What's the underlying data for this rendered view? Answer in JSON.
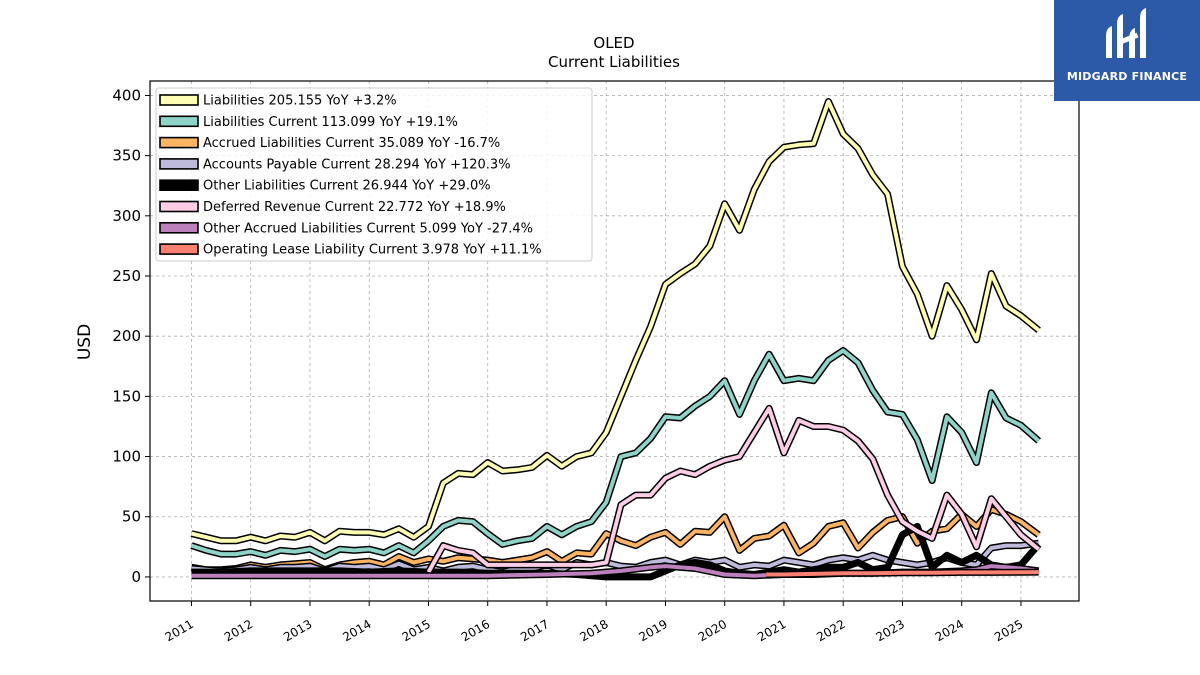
{
  "chart_data": {
    "type": "line",
    "title": "OLED",
    "subtitle": "Current  Liabilities",
    "ylabel": "USD",
    "xlabel": "",
    "ylim": [
      -20,
      412
    ],
    "xlim": [
      2010.3,
      2025.98
    ],
    "yticks": [
      0,
      50,
      100,
      150,
      200,
      250,
      300,
      350,
      400
    ],
    "xticks": [
      "2011",
      "2012",
      "2013",
      "2014",
      "2015",
      "2016",
      "2017",
      "2018",
      "2019",
      "2020",
      "2021",
      "2022",
      "2023",
      "2024",
      "2025"
    ],
    "grid": true,
    "legend_position": "top-left",
    "series": [
      {
        "name": "Liabilities",
        "label": "Liabilities  205.155 YoY +3.2%",
        "color": "#ffffb3",
        "x": [
          2011.0,
          2011.25,
          2011.5,
          2011.75,
          2012.0,
          2012.25,
          2012.5,
          2012.75,
          2013.0,
          2013.25,
          2013.5,
          2013.75,
          2014.0,
          2014.25,
          2014.5,
          2014.75,
          2015.0,
          2015.25,
          2015.5,
          2015.75,
          2016.0,
          2016.25,
          2016.5,
          2016.75,
          2017.0,
          2017.25,
          2017.5,
          2017.75,
          2018.0,
          2018.25,
          2018.5,
          2018.75,
          2019.0,
          2019.25,
          2019.5,
          2019.75,
          2020.0,
          2020.25,
          2020.5,
          2020.75,
          2021.0,
          2021.25,
          2021.5,
          2021.75,
          2022.0,
          2022.25,
          2022.5,
          2022.75,
          2023.0,
          2023.25,
          2023.5,
          2023.75,
          2024.0,
          2024.25,
          2024.5,
          2024.75,
          2025.0,
          2025.3
        ],
        "y": [
          36,
          33,
          30,
          30,
          33,
          30,
          34,
          33,
          37,
          30,
          38,
          37,
          37,
          35,
          40,
          33,
          42,
          78,
          86,
          85,
          95,
          88,
          89,
          91,
          101,
          92,
          100,
          103,
          120,
          150,
          180,
          208,
          243,
          252,
          260,
          275,
          310,
          288,
          322,
          345,
          357,
          359,
          360,
          395,
          368,
          356,
          334,
          318,
          258,
          235,
          200,
          242,
          222,
          197,
          252,
          225,
          217,
          205
        ]
      },
      {
        "name": "Liabilities Current",
        "label": "Liabilities Current  113.099 YoY +19.1%",
        "color": "#8dd3c7",
        "x": [
          2011.0,
          2011.25,
          2011.5,
          2011.75,
          2012.0,
          2012.25,
          2012.5,
          2012.75,
          2013.0,
          2013.25,
          2013.5,
          2013.75,
          2014.0,
          2014.25,
          2014.5,
          2014.75,
          2015.0,
          2015.25,
          2015.5,
          2015.75,
          2016.0,
          2016.25,
          2016.5,
          2016.75,
          2017.0,
          2017.25,
          2017.5,
          2017.75,
          2018.0,
          2018.25,
          2018.5,
          2018.75,
          2019.0,
          2019.25,
          2019.5,
          2019.75,
          2020.0,
          2020.25,
          2020.5,
          2020.75,
          2021.0,
          2021.25,
          2021.5,
          2021.75,
          2022.0,
          2022.25,
          2022.5,
          2022.75,
          2023.0,
          2023.25,
          2023.5,
          2023.75,
          2024.0,
          2024.25,
          2024.5,
          2024.75,
          2025.0,
          2025.3
        ],
        "y": [
          26,
          22,
          19,
          19,
          21,
          18,
          22,
          21,
          23,
          17,
          23,
          22,
          23,
          20,
          26,
          20,
          30,
          42,
          47,
          46,
          36,
          27,
          30,
          32,
          42,
          35,
          42,
          46,
          62,
          100,
          103,
          115,
          133,
          132,
          142,
          150,
          163,
          135,
          163,
          185,
          163,
          165,
          163,
          180,
          188,
          178,
          155,
          137,
          135,
          114,
          80,
          133,
          120,
          95,
          153,
          132,
          126,
          113
        ]
      },
      {
        "name": "Accrued Liabilities Current",
        "label": "Accrued Liabilities Current  35.089 YoY -16.7%",
        "color": "#fdb462",
        "x": [
          2011.0,
          2011.25,
          2011.5,
          2011.75,
          2012.0,
          2012.25,
          2012.5,
          2012.75,
          2013.0,
          2013.25,
          2013.5,
          2013.75,
          2014.0,
          2014.25,
          2014.5,
          2014.75,
          2015.0,
          2015.25,
          2015.5,
          2015.75,
          2016.0,
          2016.25,
          2016.5,
          2016.75,
          2017.0,
          2017.25,
          2017.5,
          2017.75,
          2018.0,
          2018.25,
          2018.5,
          2018.75,
          2019.0,
          2019.25,
          2019.5,
          2019.75,
          2020.0,
          2020.25,
          2020.5,
          2020.75,
          2021.0,
          2021.25,
          2021.5,
          2021.75,
          2022.0,
          2022.25,
          2022.5,
          2022.75,
          2023.0,
          2023.25,
          2023.5,
          2023.75,
          2024.0,
          2024.25,
          2024.5,
          2024.75,
          2025.0,
          2025.3
        ],
        "y": [
          8,
          6,
          6,
          7,
          10,
          8,
          10,
          11,
          12,
          6,
          10,
          12,
          13,
          10,
          17,
          12,
          15,
          13,
          16,
          15,
          14,
          12,
          14,
          16,
          21,
          13,
          20,
          19,
          36,
          30,
          26,
          33,
          37,
          27,
          38,
          37,
          50,
          22,
          32,
          34,
          43,
          20,
          28,
          42,
          45,
          24,
          37,
          47,
          50,
          28,
          38,
          40,
          52,
          42,
          56,
          52,
          46,
          35
        ]
      },
      {
        "name": "Accounts Payable Current",
        "label": "Accounts Payable Current  28.294 YoY +120.3%",
        "color": "#bebada",
        "x": [
          2011.0,
          2011.25,
          2011.5,
          2011.75,
          2012.0,
          2012.25,
          2012.5,
          2012.75,
          2013.0,
          2013.25,
          2013.5,
          2013.75,
          2014.0,
          2014.25,
          2014.5,
          2014.75,
          2015.0,
          2015.25,
          2015.5,
          2015.75,
          2016.0,
          2016.25,
          2016.5,
          2016.75,
          2017.0,
          2017.25,
          2017.5,
          2017.75,
          2018.0,
          2018.25,
          2018.5,
          2018.75,
          2019.0,
          2019.25,
          2019.5,
          2019.75,
          2020.0,
          2020.25,
          2020.5,
          2020.75,
          2021.0,
          2021.25,
          2021.5,
          2021.75,
          2022.0,
          2022.25,
          2022.5,
          2022.75,
          2023.0,
          2023.25,
          2023.5,
          2023.75,
          2024.0,
          2024.25,
          2024.5,
          2024.75,
          2025.0,
          2025.3
        ],
        "y": [
          7,
          6,
          5,
          6,
          8,
          6,
          8,
          8,
          9,
          5,
          9,
          8,
          9,
          6,
          11,
          6,
          8,
          5,
          8,
          9,
          6,
          4,
          7,
          7,
          10,
          6,
          12,
          10,
          12,
          9,
          8,
          12,
          14,
          10,
          14,
          12,
          14,
          8,
          10,
          9,
          14,
          12,
          10,
          14,
          16,
          14,
          18,
          14,
          12,
          10,
          12,
          16,
          12,
          10,
          24,
          26,
          26,
          28
        ]
      },
      {
        "name": "Other Liabilities Current",
        "label": "Other Liabilities Current  26.944 YoY +29.0%",
        "color": "#000000",
        "x": [
          2011.0,
          2011.5,
          2012.0,
          2012.5,
          2013.0,
          2013.5,
          2014.0,
          2014.5,
          2015.0,
          2015.5,
          2016.0,
          2016.5,
          2017.0,
          2017.5,
          2018.0,
          2018.25,
          2018.5,
          2018.75,
          2019.0,
          2019.25,
          2019.5,
          2019.75,
          2020.0,
          2020.25,
          2020.5,
          2020.75,
          2021.0,
          2021.25,
          2021.5,
          2021.75,
          2022.0,
          2022.25,
          2022.5,
          2022.75,
          2023.0,
          2023.25,
          2023.5,
          2023.75,
          2024.0,
          2024.25,
          2024.5,
          2024.75,
          2025.0,
          2025.3
        ],
        "y": [
          4,
          4,
          5,
          5,
          5,
          5,
          4,
          5,
          4,
          4,
          3,
          3,
          3,
          2,
          0,
          0,
          0,
          0,
          5,
          10,
          12,
          10,
          5,
          3,
          2,
          4,
          6,
          4,
          6,
          8,
          8,
          12,
          6,
          8,
          35,
          42,
          8,
          18,
          12,
          18,
          10,
          8,
          10,
          27
        ]
      },
      {
        "name": "Deferred Revenue Current",
        "label": "Deferred Revenue Current  22.772 YoY +18.9%",
        "color": "#fccde5",
        "x": [
          2015.0,
          2015.25,
          2015.5,
          2015.75,
          2016.0,
          2016.25,
          2016.5,
          2016.75,
          2017.0,
          2017.25,
          2017.5,
          2017.75,
          2018.0,
          2018.25,
          2018.5,
          2018.75,
          2019.0,
          2019.25,
          2019.5,
          2019.75,
          2020.0,
          2020.25,
          2020.5,
          2020.75,
          2021.0,
          2021.25,
          2021.5,
          2021.75,
          2022.0,
          2022.25,
          2022.5,
          2022.75,
          2023.0,
          2023.25,
          2023.5,
          2023.75,
          2024.0,
          2024.25,
          2024.5,
          2024.75,
          2025.0,
          2025.3
        ],
        "y": [
          4,
          26,
          22,
          20,
          10,
          10,
          10,
          10,
          10,
          10,
          10,
          10,
          12,
          60,
          68,
          68,
          82,
          88,
          85,
          92,
          97,
          100,
          120,
          140,
          103,
          130,
          125,
          125,
          122,
          113,
          98,
          68,
          46,
          38,
          32,
          68,
          52,
          25,
          65,
          50,
          35,
          23
        ]
      },
      {
        "name": "Other Accrued Liabilities Current",
        "label": "Other Accrued Liabilities Current  5.099 YoY -27.4%",
        "color": "#bc80bd",
        "x": [
          2011.0,
          2012.0,
          2013.0,
          2014.0,
          2015.0,
          2016.0,
          2017.0,
          2017.75,
          2018.25,
          2018.75,
          2019.0,
          2019.5,
          2020.0,
          2020.5,
          2021.0,
          2021.5,
          2022.0,
          2022.5,
          2023.0,
          2023.5,
          2024.0,
          2024.25,
          2024.5,
          2024.75,
          2025.0,
          2025.3
        ],
        "y": [
          1,
          1,
          1,
          1,
          1,
          1,
          2,
          3,
          5,
          8,
          9,
          7,
          2,
          1,
          2,
          2,
          3,
          3,
          4,
          4,
          5,
          6,
          9,
          8,
          7,
          5
        ]
      },
      {
        "name": "Operating Lease Liability Current",
        "label": "Operating Lease Liability Current  3.978 YoY +11.1%",
        "color": "#fb8072",
        "x": [
          2020.7,
          2021.0,
          2021.5,
          2022.0,
          2022.5,
          2023.0,
          2023.5,
          2024.0,
          2024.5,
          2025.0,
          2025.3
        ],
        "y": [
          2,
          2,
          2.5,
          3,
          3,
          3.5,
          3.5,
          3.8,
          3.8,
          3.9,
          4
        ]
      }
    ]
  },
  "logo": {
    "text": "MIDGARD FINANCE",
    "color": "#2d5aa8"
  }
}
